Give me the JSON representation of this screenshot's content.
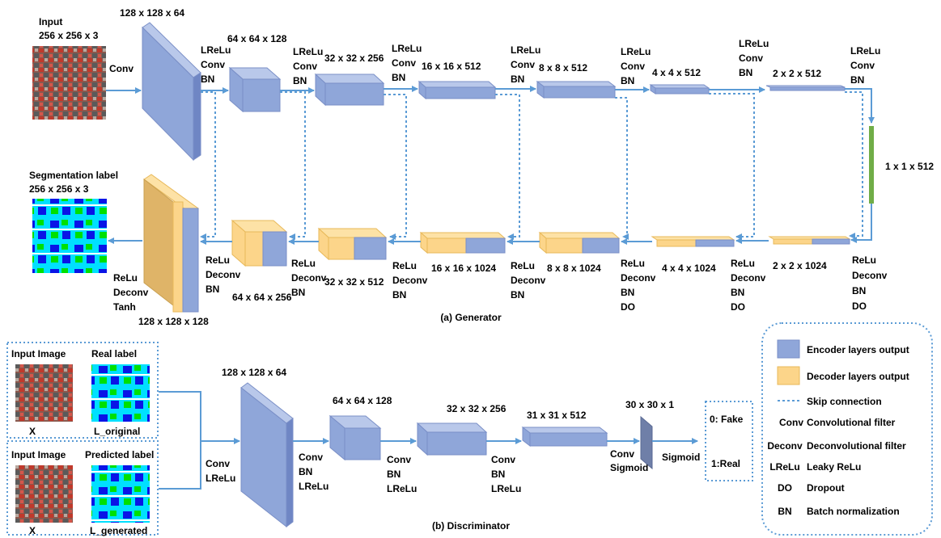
{
  "colors": {
    "encoder": "#8fa6d9",
    "decoder": "#fcd58a",
    "arrow": "#5b9bd5",
    "skip": "#5b9bd5",
    "bottleneck": "#70ad47"
  },
  "generator": {
    "caption": "(a) Generator",
    "input_label": "Input",
    "input_size": "256 x 256 x 3",
    "output_label": "Segmentation label",
    "output_size": "256 x 256 x 3",
    "conv_label": "Conv",
    "bottleneck_size": "1 x 1 x 512",
    "enc_sizes": [
      "128 x 128 x 64",
      "64 x 64 x 128",
      "32 x 32 x 256",
      "16 x 16 x 512",
      "8 x 8 x 512",
      "4 x 4 x 512",
      "2 x 2 x 512"
    ],
    "dec_sizes": [
      "128 x 128 x 128",
      "64 x 64 x 256",
      "32 x 32 x 512",
      "16 x 16 x 1024",
      "8 x 8 x 1024",
      "4 x 4 x 1024",
      "2 x 2 x 1024"
    ],
    "enc_ops": [
      "LReLu",
      "Conv",
      "BN"
    ],
    "dec_ops": [
      "ReLu",
      "Deconv",
      "BN"
    ],
    "dec_ops_do": [
      "ReLu",
      "Deconv",
      "BN",
      "DO"
    ],
    "final_ops": [
      "ReLu",
      "Deconv",
      "Tanh"
    ]
  },
  "discriminator": {
    "caption": "(b) Discriminator",
    "input_image": "Input Image",
    "real_label": "Real label",
    "predicted_label": "Predicted label",
    "x_label": "X",
    "l_original": "L_original",
    "l_generated": "L_generated",
    "first_ops": [
      "Conv",
      "LReLu"
    ],
    "block_ops": [
      "Conv",
      "BN",
      "LReLu"
    ],
    "conv_sigmoid": [
      "Conv",
      "Sigmoid"
    ],
    "sigmoid": "Sigmoid",
    "sizes": [
      "128 x 128 x 64",
      "64 x 64 x 128",
      "32 x 32 x 256",
      "31 x 31 x 512",
      "30 x 30 x 1"
    ],
    "out_fake": "0: Fake",
    "out_real": "1:Real"
  },
  "legend": {
    "encoder": "Encoder layers output",
    "decoder": "Decoder layers output",
    "skip": "Skip connection",
    "rows": [
      {
        "abbr": "Conv",
        "desc": "Convolutional filter"
      },
      {
        "abbr": "Deconv",
        "desc": "Deconvolutional filter"
      },
      {
        "abbr": "LReLu",
        "desc": "Leaky ReLu"
      },
      {
        "abbr": "DO",
        "desc": "Dropout"
      },
      {
        "abbr": "BN",
        "desc": "Batch normalization"
      }
    ]
  }
}
